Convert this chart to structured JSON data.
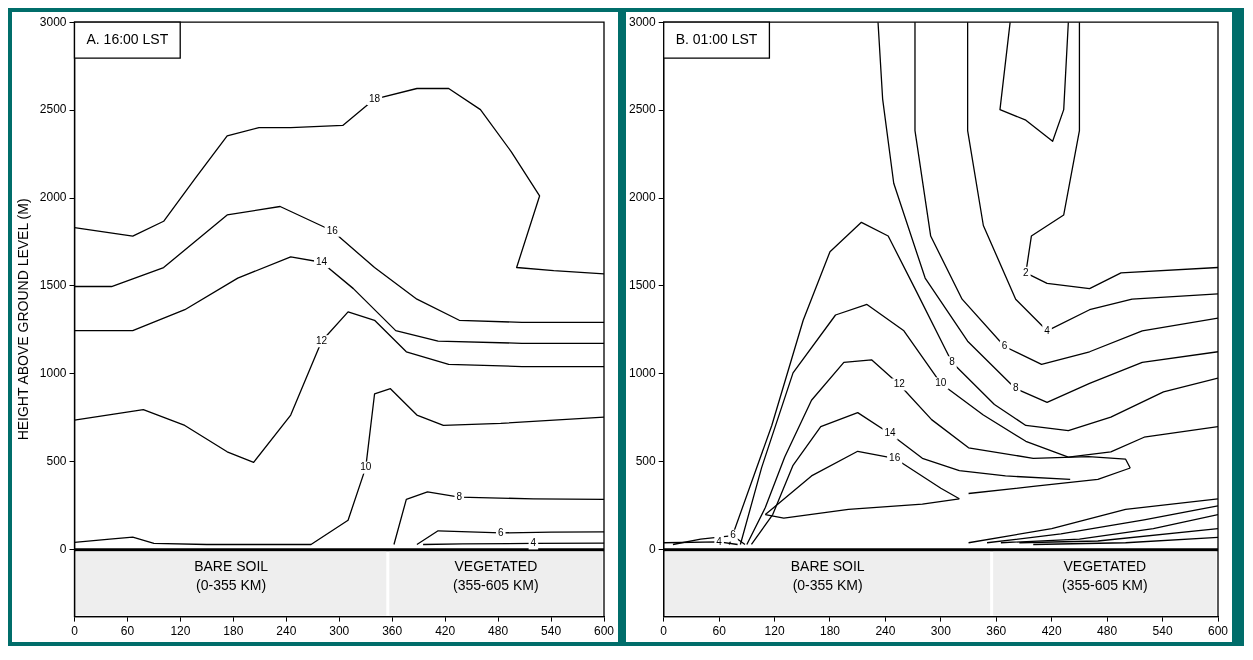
{
  "chart_data": [
    {
      "type": "line",
      "title": "A. 16:00 LST",
      "ylabel": "HEIGHT ABOVE GROUND LEVEL (M)",
      "xlim": [
        0,
        600
      ],
      "xticks": [
        0,
        60,
        120,
        180,
        240,
        300,
        360,
        420,
        480,
        540,
        600
      ],
      "ylim": [
        -380,
        3000
      ],
      "yticks": [
        0,
        500,
        1000,
        1500,
        2000,
        2500,
        3000
      ],
      "grid": false,
      "series": [
        {
          "name": "18",
          "color": "#000000",
          "x": [
            0,
            66,
            101,
            137,
            173,
            209,
            245,
            304,
            340,
            388,
            424,
            460,
            495,
            527,
            501,
            543,
            600
          ],
          "values": [
            1832,
            1784,
            1868,
            2114,
            2353,
            2401,
            2401,
            2413,
            2563,
            2623,
            2623,
            2503,
            2263,
            2012,
            1605,
            1587,
            1569
          ]
        },
        {
          "name": "16",
          "color": "#000000",
          "x": [
            0,
            42,
            101,
            173,
            233,
            292,
            340,
            388,
            436,
            507,
            600
          ],
          "values": [
            1497,
            1497,
            1605,
            1904,
            1952,
            1814,
            1605,
            1425,
            1305,
            1293,
            1293
          ]
        },
        {
          "name": "14",
          "color": "#000000",
          "x": [
            0,
            66,
            125,
            185,
            245,
            280,
            316,
            364,
            412,
            507,
            600
          ],
          "values": [
            1246,
            1246,
            1365,
            1545,
            1665,
            1635,
            1485,
            1246,
            1186,
            1174,
            1174
          ]
        },
        {
          "name": "12",
          "color": "#000000",
          "x": [
            0,
            78,
            125,
            173,
            203,
            245,
            280,
            310,
            340,
            376,
            424,
            507,
            600
          ],
          "values": [
            737,
            797,
            707,
            557,
            497,
            766,
            1186,
            1353,
            1305,
            1126,
            1054,
            1042,
            1042
          ]
        },
        {
          "name": "10",
          "color": "#000000",
          "x": [
            0,
            40,
            66,
            90,
            150,
            268,
            310,
            330,
            340,
            358,
            388,
            418,
            483,
            600
          ],
          "values": [
            42,
            60,
            72,
            36,
            30,
            30,
            168,
            467,
            886,
            916,
            766,
            707,
            719,
            754
          ]
        },
        {
          "name": "8",
          "color": "#000000",
          "x": [
            362,
            376,
            400,
            436,
            520,
            600
          ],
          "values": [
            30,
            287,
            329,
            299,
            290,
            287
          ]
        },
        {
          "name": "6",
          "color": "#000000",
          "x": [
            388,
            412,
            483,
            540,
            600
          ],
          "values": [
            30,
            108,
            96,
            100,
            102
          ]
        },
        {
          "name": "4",
          "color": "#000000",
          "x": [
            395,
            440,
            520,
            600
          ],
          "values": [
            30,
            34,
            36,
            38
          ]
        }
      ],
      "ref_lines": [
        {
          "axis": "y",
          "value": 0
        }
      ],
      "bands": [
        {
          "axis": "x",
          "from": 0,
          "to": 355,
          "label": "BARE SOIL\n(0-355 KM)",
          "color": "#eeeeee"
        },
        {
          "axis": "x",
          "from": 355,
          "to": 600,
          "label": "VEGETATED\n(355-605 KM)",
          "color": "#eeeeee"
        }
      ]
    },
    {
      "type": "line",
      "title": "B. 01:00 LST",
      "xlim": [
        0,
        600
      ],
      "xticks": [
        0,
        60,
        120,
        180,
        240,
        300,
        360,
        420,
        480,
        540,
        600
      ],
      "ylim": [
        -380,
        3000
      ],
      "yticks": [
        0,
        500,
        1000,
        1500,
        2000,
        2500,
        3000
      ],
      "grid": false,
      "series": [
        {
          "color": "#000000",
          "x": [
            375,
            364,
            392,
            421,
            433,
            438
          ],
          "values": [
            3000,
            2503,
            2443,
            2323,
            2503,
            3000
          ]
        },
        {
          "name": "2",
          "color": "#000000",
          "x": [
            450,
            450,
            433,
            398,
            392,
            415,
            461,
            495,
            600
          ],
          "values": [
            3000,
            2383,
            1904,
            1784,
            1575,
            1515,
            1485,
            1575,
            1605
          ]
        },
        {
          "name": "4",
          "color": "#000000",
          "x": [
            329,
            329,
            346,
            381,
            415,
            461,
            507,
            600
          ],
          "values": [
            3000,
            2383,
            1844,
            1425,
            1245,
            1365,
            1425,
            1455
          ]
        },
        {
          "name": "6",
          "color": "#000000",
          "x": [
            272,
            272,
            289,
            323,
            369,
            409,
            461,
            518,
            600
          ],
          "values": [
            3000,
            2383,
            1784,
            1425,
            1156,
            1054,
            1126,
            1245,
            1317
          ]
        },
        {
          "name": "8",
          "color": "#000000",
          "x": [
            232,
            237,
            249,
            283,
            329,
            381,
            415,
            461,
            518,
            600
          ],
          "values": [
            3000,
            2563,
            2084,
            1545,
            1186,
            916,
            838,
            946,
            1066,
            1126
          ]
        },
        {
          "name": "8",
          "color": "#000000",
          "x": [
            71,
            117,
            151,
            180,
            214,
            243,
            272,
            312,
            358,
            392,
            438,
            484,
            541,
            600
          ],
          "values": [
            30,
            707,
            1305,
            1695,
            1862,
            1784,
            1485,
            1066,
            826,
            707,
            677,
            754,
            898,
            976
          ]
        },
        {
          "name": "10",
          "color": "#000000",
          "x": [
            83,
            106,
            140,
            186,
            220,
            260,
            300,
            346,
            392,
            438,
            484,
            520,
            600
          ],
          "values": [
            30,
            467,
            1006,
            1335,
            1395,
            1245,
            946,
            766,
            617,
            527,
            557,
            640,
            700
          ]
        },
        {
          "name": "12",
          "color": "#000000",
          "x": [
            90,
            110,
            131,
            160,
            195,
            225,
            255,
            290,
            330,
            400,
            460,
            500,
            505
          ],
          "values": [
            30,
            240,
            527,
            850,
            1066,
            1080,
            940,
            740,
            580,
            520,
            530,
            515,
            465
          ]
        },
        {
          "color": "#000000",
          "x": [
            330,
            400,
            470,
            505
          ],
          "values": [
            320,
            360,
            400,
            465
          ]
        },
        {
          "name": "14",
          "color": "#000000",
          "x": [
            95,
            118,
            140,
            170,
            210,
            245,
            280,
            320,
            370,
            440
          ],
          "values": [
            30,
            200,
            480,
            700,
            780,
            660,
            520,
            450,
            420,
            400
          ]
        },
        {
          "name": "16",
          "color": "#000000",
          "x": [
            110,
            160,
            210,
            250,
            300,
            320
          ],
          "values": [
            200,
            420,
            560,
            520,
            350,
            290
          ]
        },
        {
          "color": "#000000",
          "x": [
            110,
            130,
            200,
            280,
            320
          ],
          "values": [
            200,
            180,
            230,
            260,
            290
          ]
        },
        {
          "color": "#000000",
          "x": [
            330,
            420,
            500,
            600
          ],
          "values": [
            40,
            120,
            230,
            290
          ]
        },
        {
          "color": "#000000",
          "x": [
            350,
            430,
            520,
            600
          ],
          "values": [
            40,
            90,
            170,
            250
          ]
        },
        {
          "color": "#000000",
          "x": [
            365,
            450,
            530,
            600
          ],
          "values": [
            40,
            60,
            120,
            200
          ]
        },
        {
          "color": "#000000",
          "x": [
            385,
            470,
            600
          ],
          "values": [
            40,
            50,
            120
          ]
        },
        {
          "color": "#000000",
          "x": [
            400,
            500,
            600
          ],
          "values": [
            30,
            40,
            70
          ]
        },
        {
          "name": "6",
          "color": "#000000",
          "x": [
            10,
            40,
            75,
            88
          ],
          "values": [
            30,
            60,
            80,
            30
          ]
        },
        {
          "name": "4",
          "color": "#000000",
          "x": [
            0,
            60,
            80
          ],
          "values": [
            40,
            45,
            30
          ]
        }
      ],
      "ref_lines": [
        {
          "axis": "y",
          "value": 0
        }
      ],
      "bands": [
        {
          "axis": "x",
          "from": 0,
          "to": 355,
          "label": "BARE SOIL\n(0-355 KM)",
          "color": "#eeeeee"
        },
        {
          "axis": "x",
          "from": 355,
          "to": 600,
          "label": "VEGETATED\n(355-605 KM)",
          "color": "#eeeeee"
        }
      ]
    }
  ]
}
